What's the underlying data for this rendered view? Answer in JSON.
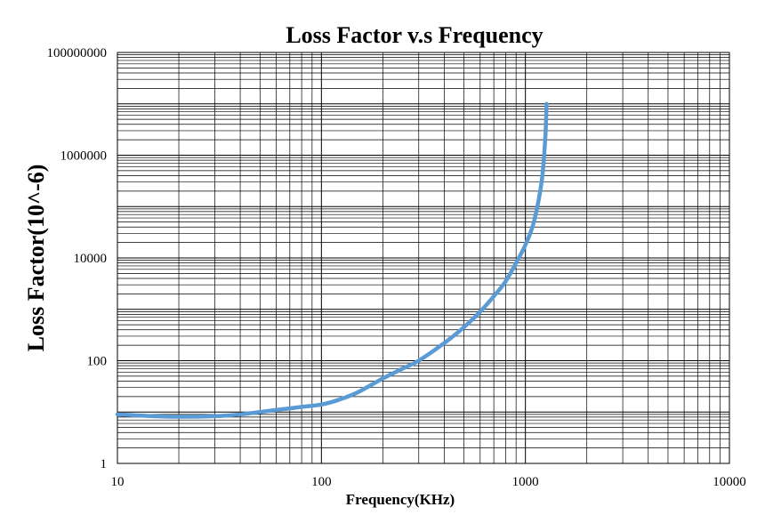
{
  "chart_data": {
    "type": "line",
    "title": "Loss Factor v.s Frequency",
    "xlabel": "Frequency(KHz)",
    "ylabel": "Loss Factor(10^-6)",
    "x_scale": "log",
    "y_scale": "log",
    "xlim": [
      10,
      10000
    ],
    "ylim": [
      1,
      100000000
    ],
    "x_tick_labels": [
      "10",
      "100",
      "1000",
      "10000"
    ],
    "y_tick_labels": [
      "1",
      "100",
      "10000",
      "1000000",
      "100000000"
    ],
    "grid": true,
    "legend": "none",
    "series": [
      {
        "color": "#5b9bd5",
        "x": [
          10,
          15,
          20,
          30,
          40,
          50,
          60,
          70,
          80,
          100,
          120,
          150,
          200,
          250,
          300,
          400,
          500,
          600,
          700,
          800,
          900,
          1000,
          1100,
          1200,
          1250,
          1270
        ],
        "y": [
          9,
          8.3,
          8.1,
          8.3,
          9,
          10,
          11,
          11.8,
          12.6,
          14,
          17,
          24,
          45,
          70,
          100,
          220,
          450,
          900,
          1800,
          3500,
          8000,
          18000,
          50000,
          300000,
          2000000,
          10000000
        ]
      }
    ]
  }
}
